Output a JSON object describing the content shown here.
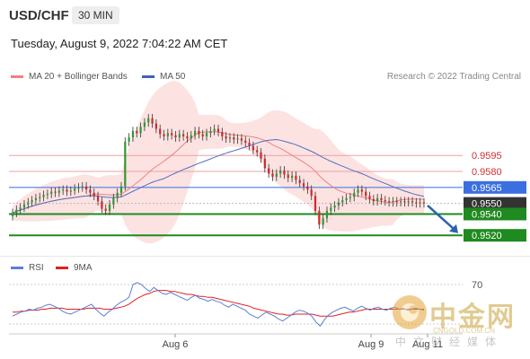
{
  "header": {
    "symbol": "USD/CHF",
    "timeframe": "30 MIN"
  },
  "datetime": "Tuesday, August 9, 2022 7:04:22 AM CET",
  "legend": {
    "bb": {
      "label": "MA 20 + Bollinger Bands",
      "color": "#f08080"
    },
    "ma50": {
      "label": "MA 50",
      "color": "#4062b0"
    },
    "credit": "Research © 2022 Trading Central"
  },
  "rsi_legend": {
    "rsi": {
      "label": "RSI",
      "color": "#5b7fd6"
    },
    "ma": {
      "label": "9MA",
      "color": "#e02020"
    }
  },
  "watermark": {
    "name": "中金网",
    "url": "CNGOLD.COM.CN",
    "sub": "中文财经媒体"
  },
  "chart_data": [
    {
      "type": "candlestick",
      "ylim": [
        0.9505,
        0.965
      ],
      "x_ticks": [
        "Aug 6",
        "Aug 9",
        "Aug 11"
      ],
      "levels": [
        {
          "label": "0.9595",
          "value": 0.9595,
          "kind": "resistance"
        },
        {
          "label": "0.9580",
          "value": 0.958,
          "kind": "resistance"
        },
        {
          "label": "0.9565",
          "value": 0.9565,
          "kind": "pivot"
        },
        {
          "label": "0.9550",
          "value": 0.955,
          "kind": "current"
        },
        {
          "label": "0.9540",
          "value": 0.954,
          "kind": "support"
        },
        {
          "label": "0.9520",
          "value": 0.952,
          "kind": "support"
        }
      ],
      "forecast_arrow": {
        "from": 0.9548,
        "to": 0.9522
      },
      "closes": [
        0.9541,
        0.9544,
        0.9546,
        0.9549,
        0.9551,
        0.9553,
        0.9555,
        0.9556,
        0.9558,
        0.9559,
        0.9561,
        0.956,
        0.9562,
        0.9563,
        0.9561,
        0.9562,
        0.9564,
        0.9565,
        0.9566,
        0.9563,
        0.956,
        0.9557,
        0.9552,
        0.9545,
        0.9543,
        0.9549,
        0.9555,
        0.956,
        0.9566,
        0.9608,
        0.9612,
        0.9618,
        0.9616,
        0.9622,
        0.9626,
        0.963,
        0.9625,
        0.962,
        0.9615,
        0.9613,
        0.9616,
        0.9614,
        0.9612,
        0.9615,
        0.9613,
        0.9611,
        0.9614,
        0.9618,
        0.9615,
        0.9613,
        0.9616,
        0.9618,
        0.962,
        0.9617,
        0.9613,
        0.9611,
        0.9612,
        0.961,
        0.9611,
        0.9609,
        0.9607,
        0.9604,
        0.96,
        0.9598,
        0.9592,
        0.9583,
        0.9578,
        0.9575,
        0.9578,
        0.9581,
        0.9577,
        0.9574,
        0.9576,
        0.9572,
        0.9569,
        0.9566,
        0.9563,
        0.9557,
        0.9543,
        0.953,
        0.9536,
        0.9543,
        0.9546,
        0.9548,
        0.9551,
        0.9553,
        0.9555,
        0.9556,
        0.956,
        0.9563,
        0.9561,
        0.9557,
        0.9554,
        0.9552,
        0.9555,
        0.9553,
        0.9552,
        0.9551,
        0.9552,
        0.9551,
        0.9552,
        0.9551,
        0.9552,
        0.9551,
        0.955,
        0.9551,
        0.955
      ]
    },
    {
      "type": "line",
      "name": "RSI",
      "ylim": [
        20,
        80
      ],
      "y_ticks": [
        "70"
      ],
      "rsi_values": [
        38,
        40,
        42,
        43,
        45,
        44,
        46,
        47,
        49,
        50,
        48,
        46,
        43,
        41,
        40,
        42,
        44,
        46,
        48,
        50,
        45,
        41,
        38,
        42,
        45,
        49,
        52,
        54,
        57,
        70,
        72,
        70,
        66,
        63,
        67,
        64,
        61,
        60,
        62,
        60,
        58,
        56,
        54,
        57,
        59,
        56,
        55,
        53,
        55,
        53,
        52,
        49,
        47,
        50,
        48,
        46,
        44,
        40,
        38,
        36,
        39,
        42,
        40,
        38,
        35,
        33,
        36,
        39,
        42,
        44,
        43,
        41,
        38,
        32,
        28,
        34,
        39,
        42,
        44,
        46,
        47,
        45,
        43,
        46,
        48,
        46,
        44,
        46,
        47,
        45,
        44,
        46,
        47,
        45,
        46,
        44,
        45,
        46,
        45,
        44
      ],
      "ma_values": [
        42,
        42,
        43,
        43,
        44,
        44,
        44,
        45,
        45,
        46,
        46,
        46,
        46,
        45,
        45,
        45,
        45,
        45,
        46,
        46,
        46,
        46,
        45,
        45,
        45,
        46,
        47,
        48,
        50,
        53,
        56,
        58,
        60,
        61,
        63,
        64,
        64,
        64,
        63,
        63,
        62,
        61,
        60,
        60,
        59,
        58,
        58,
        57,
        57,
        56,
        55,
        54,
        53,
        52,
        51,
        50,
        49,
        48,
        46,
        45,
        44,
        43,
        42,
        41,
        40,
        40,
        39,
        39,
        40,
        40,
        40,
        40,
        40,
        39,
        38,
        38,
        38,
        38,
        39,
        40,
        41,
        42,
        42,
        43,
        44,
        45,
        45,
        45,
        45,
        45,
        45,
        45,
        45,
        45,
        45,
        45,
        45,
        45,
        45,
        45
      ]
    }
  ]
}
